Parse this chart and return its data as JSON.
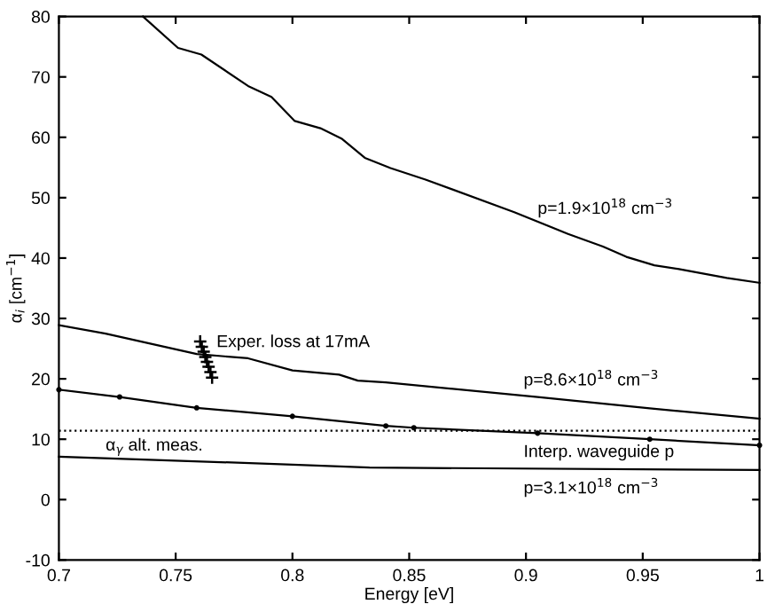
{
  "chart_data": {
    "type": "line",
    "xlabel": "Energy [eV]",
    "ylabel": "α$_{i}$ [cm$^{−1}$]",
    "xlim": [
      0.7,
      1
    ],
    "ylim": [
      -10,
      80
    ],
    "xticks": [
      {
        "value": 0.7,
        "label": "0.7"
      },
      {
        "value": 0.75,
        "label": "0.75"
      },
      {
        "value": 0.8,
        "label": "0.8"
      },
      {
        "value": 0.85,
        "label": "0.85"
      },
      {
        "value": 0.9,
        "label": "0.9"
      },
      {
        "value": 0.95,
        "label": "0.95"
      },
      {
        "value": 1,
        "label": "1"
      }
    ],
    "yticks": [
      -10,
      0,
      10,
      20,
      30,
      40,
      50,
      60,
      70,
      80
    ],
    "grid": false,
    "legend": false,
    "series": [
      {
        "name": "p=1.9×10$^{18}$ cm$^{−3}$",
        "color": "#000000",
        "x": [
          0.736,
          0.751,
          0.761,
          0.781,
          0.791,
          0.801,
          0.812,
          0.821,
          0.831,
          0.842,
          0.857,
          0.895,
          0.918,
          0.933,
          0.943,
          0.955,
          0.965,
          0.986,
          1.0
        ],
        "values": [
          80,
          74.8,
          73.7,
          68.5,
          66.7,
          62.7,
          61.5,
          59.8,
          56.6,
          54.9,
          53,
          47.6,
          44,
          41.9,
          40.2,
          38.8,
          38.2,
          36.7,
          35.9
        ]
      },
      {
        "name": "p=8.6×10$^{18}$ cm$^{−3}$",
        "color": "#000000",
        "x": [
          0.7,
          0.72,
          0.759,
          0.781,
          0.8,
          0.82,
          0.828,
          0.84,
          0.905,
          0.953,
          1.0
        ],
        "values": [
          28.9,
          27.5,
          24.1,
          23.4,
          21.4,
          20.7,
          19.7,
          19.4,
          17.0,
          15.1,
          13.4
        ]
      },
      {
        "name": "Interp. waveguide p",
        "color": "#000000",
        "marker": "circle",
        "x": [
          0.7,
          0.726,
          0.759,
          0.8,
          0.84,
          0.852,
          0.905,
          0.953,
          1.0
        ],
        "values": [
          18.2,
          17.0,
          15.2,
          13.8,
          12.2,
          11.9,
          11.0,
          10.0,
          9.0
        ]
      },
      {
        "name": "p=3.1×10$^{18}$ cm$^{−3}$",
        "color": "#000000",
        "x": [
          0.7,
          0.8,
          0.833,
          1.0
        ],
        "values": [
          7.1,
          5.8,
          5.3,
          4.9
        ]
      },
      {
        "name": "Exper. loss at 17mA",
        "type": "scatter",
        "marker": "cross",
        "color": "#000000",
        "x": [
          0.7605,
          0.7612,
          0.762,
          0.7627,
          0.7634,
          0.7641,
          0.7649,
          0.7656
        ],
        "values": [
          26.2,
          25.3,
          24.5,
          23.6,
          22.8,
          22.0,
          21.1,
          20.2
        ]
      }
    ],
    "ref_lines": [
      {
        "axis": "y",
        "value": 11.4,
        "line_style": "dotted",
        "color": "#000000",
        "label": "α$_{γ}$ alt. meas."
      }
    ]
  }
}
